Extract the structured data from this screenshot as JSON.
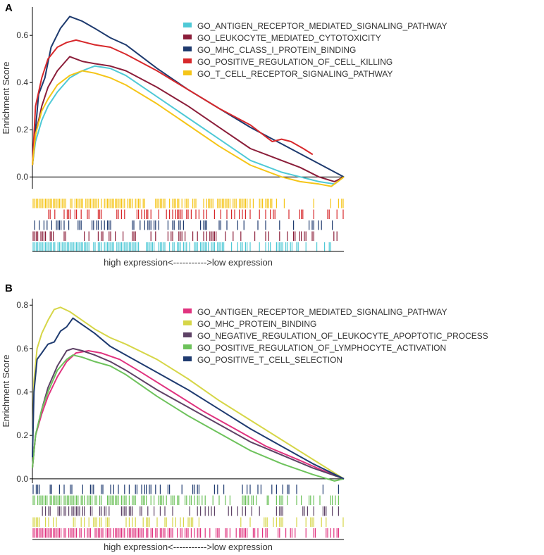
{
  "colors": {
    "axis": "#000000",
    "text": "#333333"
  },
  "chart_data": [
    {
      "panel_label": "A",
      "type": "line",
      "ylabel": "Enrichment Score",
      "xlabel": "high expression<----------->low expression",
      "ylim": [
        -0.05,
        0.72
      ],
      "yticks": [
        0.0,
        0.2,
        0.4,
        0.6
      ],
      "ytick_labels": [
        "0.0",
        "0.2",
        "0.4",
        "0.6"
      ],
      "xlim": [
        0,
        1
      ],
      "legend_position": "top-right",
      "series": [
        {
          "name": "GO_ANTIGEN_RECEPTOR_MEDIATED_SIGNALING_PATHWAY",
          "color": "#4fc9d6",
          "x": [
            0,
            0.01,
            0.03,
            0.05,
            0.08,
            0.12,
            0.16,
            0.2,
            0.25,
            0.3,
            0.4,
            0.5,
            0.6,
            0.7,
            0.8,
            0.86,
            0.92,
            0.97,
            1.0
          ],
          "y": [
            0.05,
            0.15,
            0.24,
            0.3,
            0.36,
            0.42,
            0.45,
            0.47,
            0.46,
            0.43,
            0.34,
            0.25,
            0.16,
            0.07,
            0.02,
            0.0,
            -0.02,
            -0.03,
            0.0
          ]
        },
        {
          "name": "GO_LEUKOCYTE_MEDIATED_CYTOTOXICITY",
          "color": "#8b1e3a",
          "x": [
            0,
            0.01,
            0.03,
            0.05,
            0.08,
            0.12,
            0.16,
            0.2,
            0.25,
            0.3,
            0.4,
            0.5,
            0.6,
            0.7,
            0.8,
            0.86,
            0.92,
            0.97,
            1.0
          ],
          "y": [
            0.05,
            0.18,
            0.3,
            0.38,
            0.45,
            0.51,
            0.49,
            0.48,
            0.47,
            0.45,
            0.38,
            0.3,
            0.21,
            0.12,
            0.07,
            0.04,
            0.0,
            -0.02,
            0.0
          ]
        },
        {
          "name": "GO_MHC_CLASS_I_PROTEIN_BINDING",
          "color": "#1e3a6e",
          "x": [
            0,
            0.01,
            0.02,
            0.04,
            0.06,
            0.09,
            0.12,
            0.16,
            0.2,
            0.25,
            0.3,
            0.4,
            0.5,
            0.6,
            0.7,
            0.8,
            0.9,
            1.0
          ],
          "y": [
            0.05,
            0.2,
            0.35,
            0.42,
            0.55,
            0.63,
            0.68,
            0.66,
            0.63,
            0.59,
            0.56,
            0.46,
            0.37,
            0.29,
            0.21,
            0.14,
            0.07,
            0.0
          ]
        },
        {
          "name": "GO_POSITIVE_REGULATION_OF_CELL_KILLING",
          "color": "#d7282b",
          "x": [
            0,
            0.01,
            0.03,
            0.05,
            0.08,
            0.11,
            0.14,
            0.2,
            0.25,
            0.3,
            0.4,
            0.5,
            0.6,
            0.7,
            0.77,
            0.8,
            0.83,
            0.87,
            0.9
          ],
          "y": [
            0.05,
            0.3,
            0.42,
            0.5,
            0.55,
            0.57,
            0.58,
            0.56,
            0.55,
            0.52,
            0.45,
            0.37,
            0.29,
            0.22,
            0.15,
            0.16,
            0.15,
            0.12,
            0.095
          ]
        },
        {
          "name": "GO_T_CELL_RECEPTOR_SIGNALING_PATHWAY",
          "color": "#f5c518",
          "x": [
            0,
            0.01,
            0.03,
            0.05,
            0.08,
            0.12,
            0.16,
            0.2,
            0.25,
            0.3,
            0.4,
            0.5,
            0.6,
            0.7,
            0.8,
            0.86,
            0.92,
            0.96,
            1.0
          ],
          "y": [
            0.05,
            0.18,
            0.28,
            0.33,
            0.39,
            0.43,
            0.45,
            0.44,
            0.42,
            0.39,
            0.31,
            0.22,
            0.13,
            0.05,
            0.0,
            -0.02,
            -0.03,
            -0.04,
            0.0
          ]
        }
      ],
      "rug_order_top_to_bottom": [
        "GO_T_CELL_RECEPTOR_SIGNALING_PATHWAY",
        "GO_POSITIVE_REGULATION_OF_CELL_KILLING",
        "GO_MHC_CLASS_I_PROTEIN_BINDING",
        "GO_LEUKOCYTE_MEDIATED_CYTOTOXICITY",
        "GO_ANTIGEN_RECEPTOR_MEDIATED_SIGNALING_PATHWAY"
      ]
    },
    {
      "panel_label": "B",
      "type": "line",
      "ylabel": "Enrichment Score",
      "xlabel": "high expression<----------->low expression",
      "ylim": [
        -0.02,
        0.83
      ],
      "yticks": [
        0.0,
        0.2,
        0.4,
        0.6,
        0.8
      ],
      "ytick_labels": [
        "0.0",
        "0.2",
        "0.4",
        "0.6",
        "0.8"
      ],
      "xlim": [
        0,
        1
      ],
      "legend_position": "top-right",
      "series": [
        {
          "name": "GO_ANTIGEN_RECEPTOR_MEDIATED_SIGNALING_PATHWAY",
          "color": "#e0337f",
          "x": [
            0,
            0.01,
            0.03,
            0.05,
            0.08,
            0.11,
            0.14,
            0.18,
            0.22,
            0.28,
            0.35,
            0.45,
            0.55,
            0.65,
            0.75,
            0.85,
            0.93,
            1.0
          ],
          "y": [
            0.05,
            0.2,
            0.3,
            0.38,
            0.47,
            0.54,
            0.58,
            0.59,
            0.58,
            0.55,
            0.49,
            0.4,
            0.31,
            0.23,
            0.15,
            0.09,
            0.04,
            0.0
          ]
        },
        {
          "name": "GO_MHC_PROTEIN_BINDING",
          "color": "#d6d648",
          "x": [
            0,
            0.005,
            0.015,
            0.03,
            0.05,
            0.07,
            0.09,
            0.12,
            0.16,
            0.2,
            0.25,
            0.3,
            0.4,
            0.5,
            0.6,
            0.7,
            0.8,
            0.9,
            1.0
          ],
          "y": [
            0.1,
            0.45,
            0.6,
            0.67,
            0.73,
            0.78,
            0.79,
            0.77,
            0.73,
            0.69,
            0.65,
            0.62,
            0.55,
            0.46,
            0.36,
            0.27,
            0.18,
            0.09,
            0.0
          ]
        },
        {
          "name": "GO_NEGATIVE_REGULATION_OF_LEUKOCYTE_APOPTOTIC_PROCESS",
          "color": "#5e4266",
          "x": [
            0,
            0.01,
            0.03,
            0.05,
            0.08,
            0.11,
            0.13,
            0.16,
            0.2,
            0.25,
            0.3,
            0.4,
            0.5,
            0.6,
            0.7,
            0.8,
            0.9,
            1.0
          ],
          "y": [
            0.05,
            0.2,
            0.32,
            0.42,
            0.52,
            0.59,
            0.6,
            0.59,
            0.57,
            0.54,
            0.5,
            0.41,
            0.33,
            0.25,
            0.17,
            0.11,
            0.05,
            0.0
          ]
        },
        {
          "name": "GO_POSITIVE_REGULATION_OF_LYMPHOCYTE_ACTIVATION",
          "color": "#6dc25b",
          "x": [
            0,
            0.01,
            0.03,
            0.05,
            0.08,
            0.11,
            0.13,
            0.16,
            0.2,
            0.25,
            0.3,
            0.4,
            0.5,
            0.6,
            0.7,
            0.8,
            0.9,
            0.97,
            1.0
          ],
          "y": [
            0.05,
            0.2,
            0.32,
            0.4,
            0.5,
            0.55,
            0.57,
            0.56,
            0.54,
            0.52,
            0.48,
            0.38,
            0.29,
            0.21,
            0.13,
            0.07,
            0.02,
            -0.01,
            0.0
          ]
        },
        {
          "name": "GO_POSITIVE_T_CELL_SELECTION",
          "color": "#1f3b70",
          "x": [
            0,
            0.005,
            0.015,
            0.03,
            0.05,
            0.07,
            0.09,
            0.11,
            0.13,
            0.15,
            0.2,
            0.25,
            0.3,
            0.4,
            0.5,
            0.6,
            0.7,
            0.8,
            0.9,
            1.0
          ],
          "y": [
            0.1,
            0.4,
            0.55,
            0.58,
            0.62,
            0.63,
            0.68,
            0.7,
            0.74,
            0.72,
            0.67,
            0.61,
            0.57,
            0.49,
            0.41,
            0.32,
            0.23,
            0.15,
            0.07,
            0.0
          ]
        }
      ],
      "rug_order_top_to_bottom": [
        "GO_POSITIVE_T_CELL_SELECTION",
        "GO_POSITIVE_REGULATION_OF_LYMPHOCYTE_ACTIVATION",
        "GO_NEGATIVE_REGULATION_OF_LEUKOCYTE_APOPTOTIC_PROCESS",
        "GO_MHC_PROTEIN_BINDING",
        "GO_ANTIGEN_RECEPTOR_MEDIATED_SIGNALING_PATHWAY"
      ]
    }
  ]
}
